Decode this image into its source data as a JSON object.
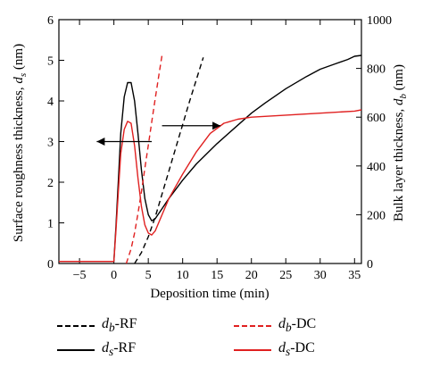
{
  "chart_data": {
    "type": "line",
    "title": "",
    "xlabel": "Deposition time (min)",
    "ylabel_left": "Surface roughness thickness, d_s (nm)",
    "ylabel_right": "Bulk layer thickness, d_b (nm)",
    "xlim": [
      -8,
      36
    ],
    "ylim_left": [
      0,
      6
    ],
    "ylim_right": [
      0,
      1000
    ],
    "xticks": [
      -5,
      0,
      5,
      10,
      15,
      20,
      25,
      30,
      35
    ],
    "yticks_left": [
      0,
      1,
      2,
      3,
      4,
      5,
      6
    ],
    "yticks_right": [
      0,
      200,
      400,
      600,
      800,
      1000
    ],
    "grid": false,
    "legend_position": "bottom",
    "series": [
      {
        "name": "d_b-RF",
        "axis": "right",
        "color": "#000000",
        "style": "dashed",
        "x": [
          3.0,
          4.0,
          5.0,
          6.0,
          7.0,
          8.0,
          9.0,
          10.0,
          11.0,
          12.0,
          13.0
        ],
        "y": [
          0,
          45,
          110,
          190,
          285,
          380,
          475,
          570,
          665,
          755,
          845
        ]
      },
      {
        "name": "d_s-RF",
        "axis": "left",
        "color": "#000000",
        "style": "solid",
        "x": [
          -8,
          -2,
          0,
          0.3,
          0.7,
          1.0,
          1.5,
          2.0,
          2.5,
          3.0,
          3.5,
          4.0,
          4.5,
          5.0,
          5.5,
          6.0,
          7.0,
          8.0,
          10.0,
          12.0,
          15.0,
          18.0,
          20.0,
          22.0,
          25.0,
          28.0,
          30.0,
          32.0,
          34.0,
          35.0,
          36.0
        ],
        "y": [
          0.05,
          0.05,
          0.05,
          0.9,
          2.2,
          3.2,
          4.1,
          4.45,
          4.45,
          4.0,
          3.2,
          2.3,
          1.6,
          1.2,
          1.05,
          1.1,
          1.35,
          1.6,
          2.05,
          2.45,
          2.95,
          3.4,
          3.7,
          3.95,
          4.3,
          4.6,
          4.78,
          4.9,
          5.02,
          5.1,
          5.12
        ]
      },
      {
        "name": "d_b-DC",
        "axis": "right",
        "color": "#e02020",
        "style": "dashed",
        "x": [
          1.8,
          2.5,
          3.0,
          3.5,
          4.0,
          4.5,
          5.0,
          5.5,
          6.0,
          6.5,
          7.0
        ],
        "y": [
          0,
          60,
          125,
          205,
          295,
          390,
          485,
          580,
          675,
          765,
          855
        ]
      },
      {
        "name": "d_s-DC",
        "axis": "left",
        "color": "#e02020",
        "style": "solid",
        "x": [
          -8,
          -2,
          0,
          0.3,
          0.7,
          1.0,
          1.5,
          2.0,
          2.5,
          3.0,
          3.5,
          4.0,
          4.5,
          5.0,
          5.5,
          6.0,
          7.0,
          8.0,
          10.0,
          12.0,
          14.0,
          16.0,
          18.0,
          20.0,
          25.0,
          30.0,
          35.0,
          36.0
        ],
        "y": [
          0.05,
          0.05,
          0.05,
          0.8,
          1.9,
          2.7,
          3.3,
          3.5,
          3.45,
          2.9,
          2.1,
          1.4,
          0.95,
          0.75,
          0.7,
          0.8,
          1.2,
          1.6,
          2.2,
          2.75,
          3.2,
          3.45,
          3.55,
          3.6,
          3.65,
          3.7,
          3.75,
          3.78
        ]
      }
    ],
    "annotations": [
      {
        "kind": "arrow",
        "target_axis": "left",
        "from": [
          5.5,
          3.0
        ],
        "to": [
          -2.5,
          3.0
        ]
      },
      {
        "kind": "arrow",
        "target_axis": "right",
        "from": [
          7.0,
          565
        ],
        "to": [
          15.5,
          565
        ]
      }
    ]
  },
  "legend": [
    {
      "base": "d",
      "sub": "b",
      "suffix": "-RF",
      "color": "#000000",
      "style": "dashed"
    },
    {
      "base": "d",
      "sub": "b",
      "suffix": "-DC",
      "color": "#e02020",
      "style": "dashed"
    },
    {
      "base": "d",
      "sub": "s",
      "suffix": "-RF",
      "color": "#000000",
      "style": "solid"
    },
    {
      "base": "d",
      "sub": "s",
      "suffix": "-DC",
      "color": "#e02020",
      "style": "solid"
    }
  ]
}
